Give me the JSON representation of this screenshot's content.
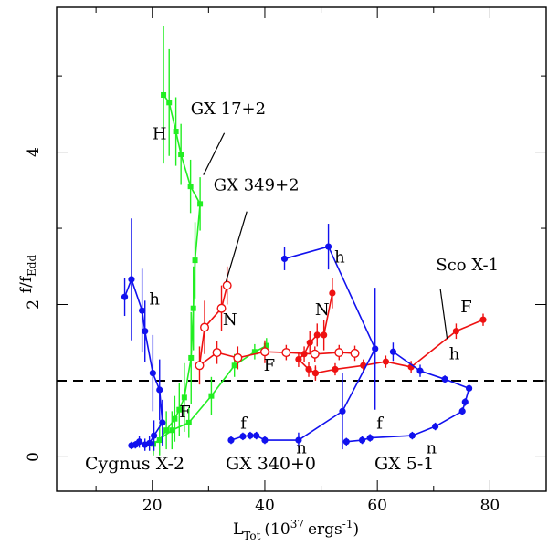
{
  "colors": {
    "green": "#22ee22",
    "red": "#ee1111",
    "blue": "#1111ee",
    "black": "#000000"
  },
  "chart_data": {
    "type": "scatter",
    "xlabel": "L",
    "xlabel_sub": "Tot",
    "xlabel_unit": "(10",
    "xlabel_sup": "37",
    "xlabel_tail": "ergs",
    "xlabel_tail_sup": "-1",
    "xlabel_close": ")",
    "ylabel": "f/f",
    "ylabel_sub": "Edd",
    "xlim": [
      3,
      90
    ],
    "ylim": [
      -0.45,
      5.9
    ],
    "xticks": [
      20,
      40,
      60,
      80
    ],
    "yticks": [
      0,
      2,
      4
    ],
    "xtick_labels": [
      "20",
      "40",
      "60",
      "80"
    ],
    "ytick_labels": [
      "0",
      "2",
      "4"
    ],
    "reference_line": 1.0,
    "sources": [
      {
        "name": "Cygnus X-2",
        "color": "blue"
      },
      {
        "name": "GX 340+0",
        "color": "blue"
      },
      {
        "name": "GX 5-1",
        "color": "blue"
      }
    ],
    "annotations": [
      {
        "text": "GX 17+2",
        "x": 33.5,
        "y": 4.5,
        "line": [
          [
            32.8,
            4.25
          ],
          [
            29.1,
            3.7
          ]
        ]
      },
      {
        "text": "GX 349+2",
        "x": 38.5,
        "y": 3.5,
        "line": [
          [
            36.8,
            3.22
          ],
          [
            33.1,
            2.3
          ]
        ]
      },
      {
        "text": "Sco X-1",
        "x": 76,
        "y": 2.45,
        "line": [
          [
            71.2,
            2.2
          ],
          [
            72.4,
            1.55
          ]
        ]
      },
      {
        "text": "H",
        "x": 21.3,
        "y": 4.17
      },
      {
        "text": "h",
        "x": 20.4,
        "y": 2.0
      },
      {
        "text": "N",
        "x": 33.8,
        "y": 1.73
      },
      {
        "text": "N",
        "x": 50.2,
        "y": 1.86
      },
      {
        "text": "F",
        "x": 25.8,
        "y": 0.52
      },
      {
        "text": "F",
        "x": 40.8,
        "y": 1.13
      },
      {
        "text": "F",
        "x": 75.8,
        "y": 1.9
      },
      {
        "text": "h",
        "x": 53.3,
        "y": 2.55
      },
      {
        "text": "h",
        "x": 73.7,
        "y": 1.28
      },
      {
        "text": "f",
        "x": 36.2,
        "y": 0.37
      },
      {
        "text": "f",
        "x": 60.4,
        "y": 0.37
      },
      {
        "text": "n",
        "x": 46.5,
        "y": 0.05
      },
      {
        "text": "n",
        "x": 69.6,
        "y": 0.05
      }
    ],
    "series": [
      {
        "name": "GX 17+2 (H branch)",
        "color": "green",
        "marker": "square",
        "points": [
          {
            "x": 22.0,
            "y": 4.75,
            "err": 0.9
          },
          {
            "x": 23.0,
            "y": 4.65,
            "err": 0.7
          },
          {
            "x": 24.2,
            "y": 4.27,
            "err": 0.45
          },
          {
            "x": 25.1,
            "y": 3.97,
            "err": 0.4
          },
          {
            "x": 26.8,
            "y": 3.55,
            "err": 0.35
          },
          {
            "x": 28.5,
            "y": 3.32,
            "err": 0.35
          },
          {
            "x": 27.6,
            "y": 2.58,
            "err": 0.5
          },
          {
            "x": 27.3,
            "y": 1.95,
            "err": 0.55
          },
          {
            "x": 26.9,
            "y": 1.3,
            "err": 0.6
          },
          {
            "x": 25.7,
            "y": 0.78,
            "err": 0.45
          },
          {
            "x": 24.8,
            "y": 0.62,
            "err": 0.35
          },
          {
            "x": 24.0,
            "y": 0.5,
            "err": 0.3
          },
          {
            "x": 22.5,
            "y": 0.35,
            "err": 0.25
          },
          {
            "x": 21.3,
            "y": 0.22,
            "err": 0.2
          },
          {
            "x": 20.2,
            "y": 0.17,
            "err": 0.15
          }
        ]
      },
      {
        "name": "GX 17+2 (N branch)",
        "color": "green",
        "marker": "square",
        "points": [
          {
            "x": 20.2,
            "y": 0.17,
            "err": 0.1
          },
          {
            "x": 23.5,
            "y": 0.35,
            "err": 0.25
          },
          {
            "x": 26.5,
            "y": 0.45,
            "err": 0.2
          },
          {
            "x": 30.5,
            "y": 0.8,
            "err": 0.25
          },
          {
            "x": 34.6,
            "y": 1.2,
            "err": 0.15
          },
          {
            "x": 38.2,
            "y": 1.38,
            "err": 0.1
          },
          {
            "x": 40.3,
            "y": 1.46,
            "err": 0.1
          }
        ]
      },
      {
        "name": "GX 349+2 (open)",
        "color": "red",
        "marker": "circle-open",
        "points": [
          {
            "x": 33.3,
            "y": 2.25,
            "err": 0.25
          },
          {
            "x": 32.3,
            "y": 1.95,
            "err": 0.3
          },
          {
            "x": 29.3,
            "y": 1.7,
            "err": 0.35
          },
          {
            "x": 28.4,
            "y": 1.2,
            "err": 0.25
          },
          {
            "x": 31.5,
            "y": 1.37,
            "err": 0.15
          },
          {
            "x": 35.2,
            "y": 1.3,
            "err": 0.15
          },
          {
            "x": 40.0,
            "y": 1.38,
            "err": 0.15
          },
          {
            "x": 43.8,
            "y": 1.37,
            "err": 0.1
          },
          {
            "x": 48.9,
            "y": 1.35,
            "err": 0.1
          },
          {
            "x": 53.2,
            "y": 1.37,
            "err": 0.1
          },
          {
            "x": 56.0,
            "y": 1.36,
            "err": 0.1
          }
        ]
      },
      {
        "name": "GX 349+2 (filled)",
        "color": "red",
        "marker": "circle",
        "points": [
          {
            "x": 52.0,
            "y": 2.15,
            "err": 0.2
          },
          {
            "x": 50.5,
            "y": 1.6,
            "err": 0.2
          },
          {
            "x": 49.3,
            "y": 1.6,
            "err": 0.15
          },
          {
            "x": 48.0,
            "y": 1.5,
            "err": 0.15
          },
          {
            "x": 47.0,
            "y": 1.35,
            "err": 0.1
          },
          {
            "x": 46.0,
            "y": 1.28,
            "err": 0.1
          },
          {
            "x": 47.8,
            "y": 1.15,
            "err": 0.1
          },
          {
            "x": 49.0,
            "y": 1.1,
            "err": 0.1
          }
        ]
      },
      {
        "name": "Sco X-1",
        "color": "red",
        "marker": "circle",
        "points": [
          {
            "x": 49.0,
            "y": 1.1,
            "err": 0.08
          },
          {
            "x": 52.5,
            "y": 1.15,
            "err": 0.08
          },
          {
            "x": 57.5,
            "y": 1.2,
            "err": 0.08
          },
          {
            "x": 61.5,
            "y": 1.25,
            "err": 0.08
          },
          {
            "x": 66.0,
            "y": 1.18,
            "err": 0.08
          },
          {
            "x": 74.0,
            "y": 1.65,
            "err": 0.1
          },
          {
            "x": 78.8,
            "y": 1.8,
            "err": 0.08
          }
        ]
      },
      {
        "name": "Cygnus X-2",
        "color": "blue",
        "marker": "circle",
        "points": [
          {
            "x": 15.1,
            "y": 2.1,
            "err": 0.25
          },
          {
            "x": 16.3,
            "y": 2.33,
            "err": 0.8
          },
          {
            "x": 18.2,
            "y": 1.92,
            "err": 0.55
          },
          {
            "x": 18.7,
            "y": 1.65,
            "err": 0.4
          },
          {
            "x": 20.1,
            "y": 1.1,
            "err": 0.5
          },
          {
            "x": 21.3,
            "y": 0.88,
            "err": 0.4
          },
          {
            "x": 21.8,
            "y": 0.45,
            "err": 0.3
          },
          {
            "x": 20.3,
            "y": 0.28,
            "err": 0.2
          },
          {
            "x": 19.5,
            "y": 0.18,
            "err": 0.1
          },
          {
            "x": 18.7,
            "y": 0.16,
            "err": 0.08
          },
          {
            "x": 17.7,
            "y": 0.2,
            "err": 0.08
          },
          {
            "x": 17.0,
            "y": 0.16,
            "err": 0.05
          },
          {
            "x": 16.3,
            "y": 0.15,
            "err": 0.05
          }
        ]
      },
      {
        "name": "GX 340+0",
        "color": "blue",
        "marker": "circle",
        "points": [
          {
            "x": 43.5,
            "y": 2.6,
            "err": 0.15
          },
          {
            "x": 51.3,
            "y": 2.76,
            "err": 0.3
          },
          {
            "x": 59.6,
            "y": 1.42,
            "err": 0.8
          },
          {
            "x": 53.8,
            "y": 0.6,
            "err": 0.5
          },
          {
            "x": 46.0,
            "y": 0.22,
            "err": 0.1
          },
          {
            "x": 40.0,
            "y": 0.22,
            "err": 0.05
          },
          {
            "x": 38.5,
            "y": 0.28,
            "err": 0.05
          },
          {
            "x": 37.4,
            "y": 0.28,
            "err": 0.05
          },
          {
            "x": 36.1,
            "y": 0.27,
            "err": 0.05
          },
          {
            "x": 34.0,
            "y": 0.22,
            "err": 0.05
          }
        ]
      },
      {
        "name": "GX 5-1",
        "color": "blue",
        "marker": "circle",
        "points": [
          {
            "x": 62.8,
            "y": 1.38,
            "err": 0.12
          },
          {
            "x": 67.6,
            "y": 1.13,
            "err": 0.08
          },
          {
            "x": 72.0,
            "y": 1.02,
            "err": 0.05
          },
          {
            "x": 76.3,
            "y": 0.9,
            "err": 0.05
          },
          {
            "x": 75.6,
            "y": 0.72,
            "err": 0.05
          },
          {
            "x": 75.1,
            "y": 0.6,
            "err": 0.05
          },
          {
            "x": 70.3,
            "y": 0.4,
            "err": 0.05
          },
          {
            "x": 66.2,
            "y": 0.28,
            "err": 0.05
          },
          {
            "x": 58.7,
            "y": 0.25,
            "err": 0.05
          },
          {
            "x": 57.3,
            "y": 0.22,
            "err": 0.05
          },
          {
            "x": 54.5,
            "y": 0.2,
            "err": 0.05
          }
        ]
      }
    ]
  }
}
